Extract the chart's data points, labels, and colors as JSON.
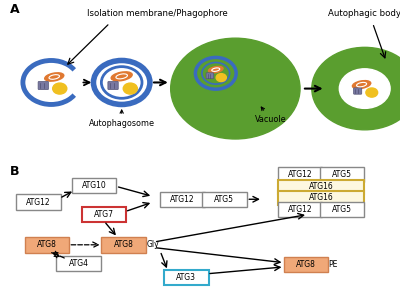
{
  "panel_A_label": "A",
  "panel_B_label": "B",
  "title_iso": "Isolation membrane/Phagophore",
  "title_auto_body": "Autophagic body",
  "label_autophagosome": "Autophagosome",
  "label_vacuole": "Vacuole",
  "blue_color": "#3a6bbf",
  "green_color": "#5a9e2f",
  "orange_mito_color": "#e07830",
  "yellow_color": "#f0c020",
  "gray_cargo_color": "#7878a0",
  "box_atg7_border": "#cc3333",
  "box_atg8_fill": "#f0a878",
  "box_atg8_border": "#d08050",
  "box_atg3_border": "#33aacc",
  "box_atg16_border": "#ccaa33",
  "box_atg16_fill": "#fdf8e0",
  "box_border": "#888888",
  "background": "#ffffff"
}
